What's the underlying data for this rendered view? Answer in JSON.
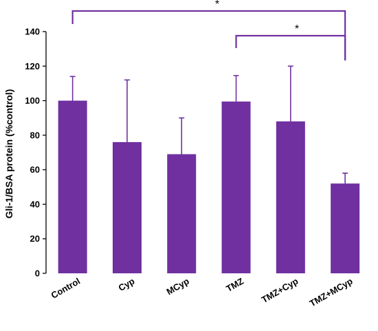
{
  "chart_data": {
    "type": "bar",
    "title": "",
    "xlabel": "",
    "ylabel": "Gli-1/BSA protein (%control)",
    "ylim": [
      0,
      140
    ],
    "yticks": [
      0,
      20,
      40,
      60,
      80,
      100,
      120,
      140
    ],
    "categories": [
      "Control",
      "Cyp",
      "MCyp",
      "TMZ",
      "TMZ+Cyp",
      "TMZ+MCyp"
    ],
    "values": [
      100,
      76,
      69,
      99.5,
      88,
      52
    ],
    "error_upper": [
      14,
      36,
      21,
      15,
      32,
      6
    ],
    "bar_color": "#7030A0",
    "grid": false,
    "significance": [
      {
        "from": "Control",
        "to": "TMZ+MCyp",
        "label": "*"
      },
      {
        "from": "TMZ",
        "to": "TMZ+MCyp",
        "label": "*"
      }
    ]
  }
}
